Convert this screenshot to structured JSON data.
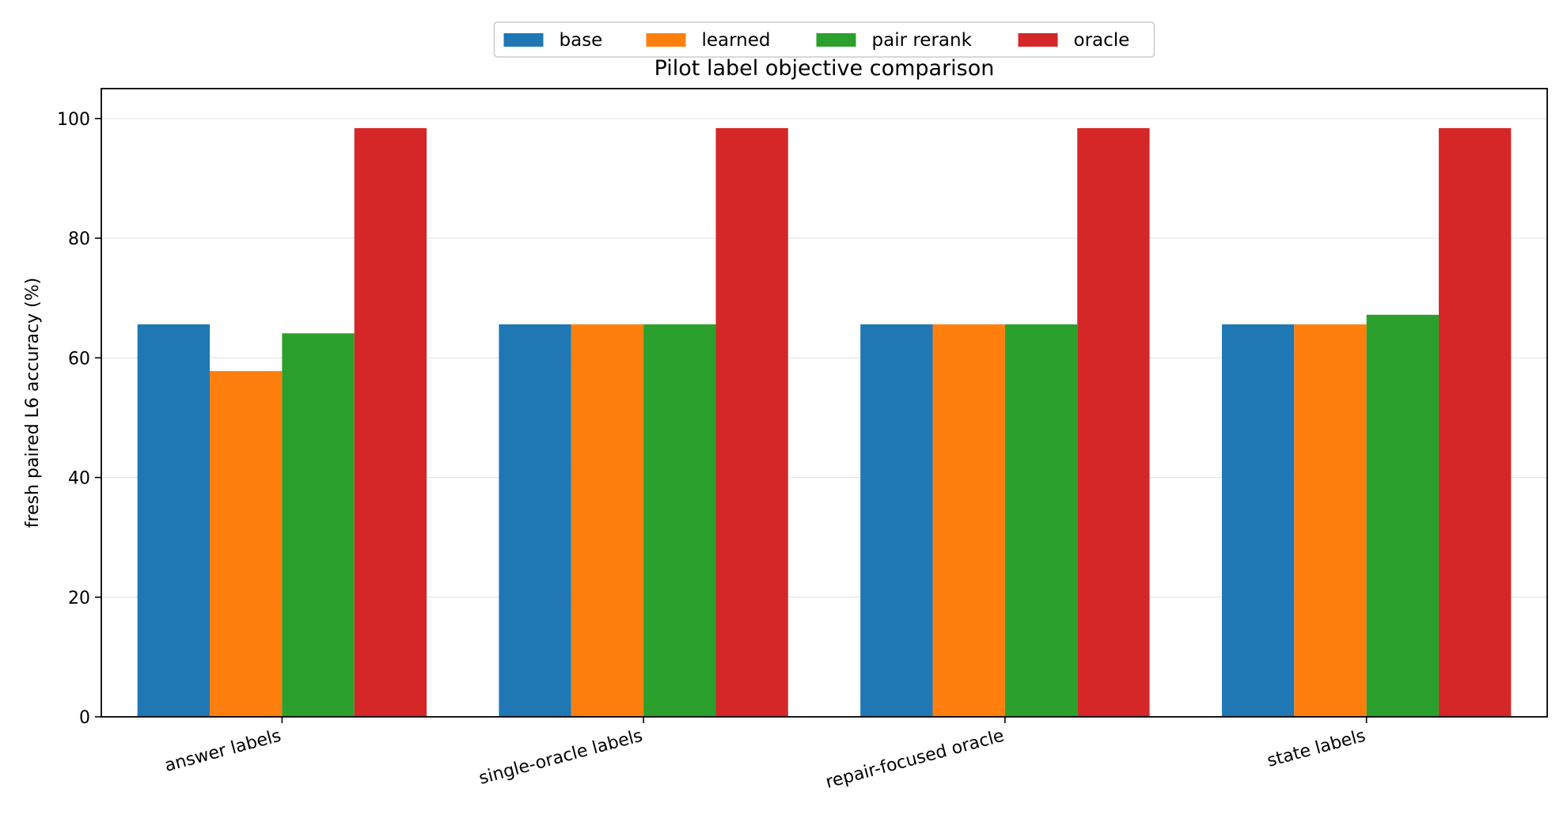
{
  "chart_data": {
    "type": "bar",
    "title": "Pilot label objective comparison",
    "xlabel": "",
    "ylabel": "fresh paired L6 accuracy (%)",
    "ylim": [
      0,
      105
    ],
    "yticks": [
      0,
      20,
      40,
      60,
      80,
      100
    ],
    "grid": "y",
    "legend_position": "top-center",
    "categories": [
      "answer labels",
      "single-oracle labels",
      "repair-focused oracle",
      "state labels"
    ],
    "series": [
      {
        "name": "base",
        "color": "#1f77b4",
        "values": [
          65.6,
          65.6,
          65.6,
          65.6
        ]
      },
      {
        "name": "learned",
        "color": "#ff7f0e",
        "values": [
          57.8,
          65.6,
          65.6,
          65.6
        ]
      },
      {
        "name": "pair rerank",
        "color": "#2ca02c",
        "values": [
          64.1,
          65.6,
          65.6,
          67.2
        ]
      },
      {
        "name": "oracle",
        "color": "#d62728",
        "values": [
          98.4,
          98.4,
          98.4,
          98.4
        ]
      }
    ]
  }
}
